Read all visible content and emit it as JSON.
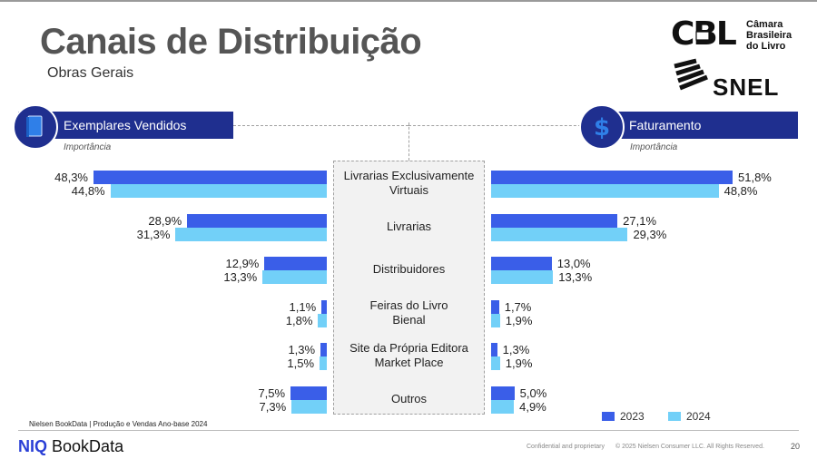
{
  "header": {
    "title": "Canais de Distribuição",
    "subtitle": "Obras Gerais"
  },
  "logos": {
    "cbl_lines": [
      "Câmara",
      "Brasileira",
      "do Livro"
    ],
    "snel": "SNEL"
  },
  "panels": {
    "left": {
      "title": "Exemplares Vendidos",
      "importance": "Importância",
      "icon": "book-icon"
    },
    "right": {
      "title": "Faturamento",
      "importance": "Importância",
      "icon": "dollar-icon"
    }
  },
  "chart_data": {
    "type": "bar",
    "orientation": "horizontal-butterfly",
    "categories": [
      [
        "Livrarias Exclusivamente",
        "Virtuais"
      ],
      [
        "Livrarias"
      ],
      [
        "Distribuidores"
      ],
      [
        "Feiras do Livro",
        "Bienal"
      ],
      [
        "Site da Própria Editora",
        "Market Place"
      ],
      [
        "Outros"
      ]
    ],
    "left": {
      "title": "Exemplares Vendidos",
      "series": [
        {
          "name": "2023",
          "values": [
            48.3,
            28.9,
            12.9,
            1.1,
            1.3,
            7.5
          ],
          "labels": [
            "48,3%",
            "28,9%",
            "12,9%",
            "1,1%",
            "1,3%",
            "7,5%"
          ]
        },
        {
          "name": "2024",
          "values": [
            44.8,
            31.3,
            13.3,
            1.8,
            1.5,
            7.3
          ],
          "labels": [
            "44,8%",
            "31,3%",
            "13,3%",
            "1,8%",
            "1,5%",
            "7,3%"
          ]
        }
      ]
    },
    "right": {
      "title": "Faturamento",
      "series": [
        {
          "name": "2023",
          "values": [
            51.8,
            27.1,
            13.0,
            1.7,
            1.3,
            5.0
          ],
          "labels": [
            "51,8%",
            "27,1%",
            "13,0%",
            "1,7%",
            "1,3%",
            "5,0%"
          ]
        },
        {
          "name": "2024",
          "values": [
            48.8,
            29.3,
            13.3,
            1.9,
            1.9,
            4.9
          ],
          "labels": [
            "48,8%",
            "29,3%",
            "13,3%",
            "1,9%",
            "1,9%",
            "4,9%"
          ]
        }
      ]
    },
    "colors": {
      "2023": "#3a5ee8",
      "2024": "#72d0f8"
    },
    "legend": {
      "items": [
        "2023",
        "2024"
      ],
      "placement": "bottom-right"
    }
  },
  "footer": {
    "source": "Nielsen BookData | Produção e Vendas Ano-base 2024",
    "brand_prefix": "NIQ",
    "brand_name": "BookData",
    "confidential": "Confidential and proprietary",
    "copyright": "© 2025 Nielsen Consumer LLC. All Rights Reserved.",
    "page": "20"
  }
}
